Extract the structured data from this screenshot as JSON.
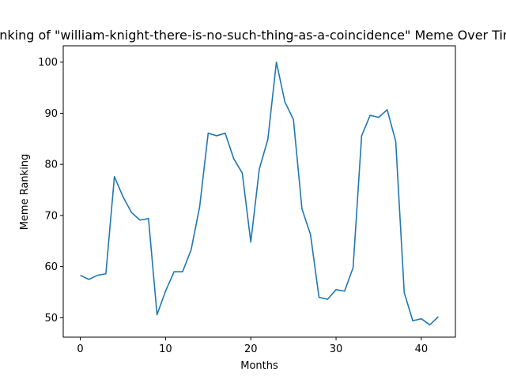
{
  "chart_data": {
    "type": "line",
    "title": "Ranking of \"william-knight-there-is-no-such-thing-as-a-coincidence\" Meme Over Time",
    "xlabel": "Months",
    "ylabel": "Meme Ranking",
    "xlim": [
      -2,
      44
    ],
    "ylim": [
      46.2,
      103.2
    ],
    "xticks": [
      0,
      10,
      20,
      30,
      40
    ],
    "yticks": [
      50,
      60,
      70,
      80,
      90,
      100
    ],
    "grid": false,
    "series": [
      {
        "color": "#1f77b4",
        "x": [
          0,
          1,
          2,
          3,
          4,
          5,
          6,
          7,
          8,
          9,
          10,
          11,
          12,
          13,
          14,
          15,
          16,
          17,
          18,
          19,
          20,
          21,
          22,
          23,
          24,
          25,
          26,
          27,
          28,
          29,
          30,
          31,
          32,
          33,
          34,
          35,
          36,
          37,
          38,
          39,
          40,
          41,
          42
        ],
        "values": [
          58.3,
          57.5,
          58.3,
          58.6,
          77.6,
          73.7,
          70.6,
          69.1,
          69.4,
          50.6,
          55.2,
          59.0,
          59.0,
          63.3,
          71.7,
          86.1,
          85.6,
          86.1,
          81.1,
          78.3,
          64.8,
          79.1,
          84.9,
          100.0,
          92.2,
          88.8,
          71.3,
          66.3,
          54.0,
          53.6,
          55.5,
          55.2,
          59.8,
          85.6,
          89.6,
          89.2,
          90.7,
          84.5,
          54.9,
          49.4,
          49.8,
          48.6,
          50.2
        ]
      }
    ]
  }
}
